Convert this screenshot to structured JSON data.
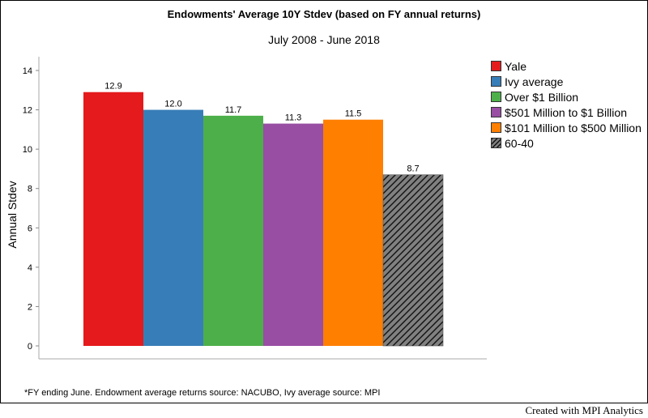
{
  "chart_data": {
    "type": "bar",
    "title": "Endowments' Average 10Y Stdev (based on FY annual returns)",
    "subtitle": "July 2008 - June 2018",
    "ylabel": "Annual Stdev",
    "xlabel": "",
    "ylim": [
      0,
      14
    ],
    "yticks": [
      0,
      2,
      4,
      6,
      8,
      10,
      12,
      14
    ],
    "categories": [
      "Yale",
      "Ivy average",
      "Over $1 Billion",
      "$501 Million to $1 Billion",
      "$101 Million to $500 Million",
      "60-40"
    ],
    "values": [
      12.9,
      12.0,
      11.7,
      11.3,
      11.5,
      8.7
    ],
    "value_labels": [
      "12.9",
      "12.0",
      "11.7",
      "11.3",
      "11.5",
      "8.7"
    ],
    "colors": [
      "#e41a1c",
      "#377eb8",
      "#4daf4a",
      "#984ea3",
      "#ff7f00",
      "#808080"
    ],
    "hatched": [
      false,
      false,
      false,
      false,
      false,
      true
    ],
    "legend_position": "right"
  },
  "footnote": "*FY ending June. Endowment average returns source: NACUBO, Ivy average source: MPI",
  "credit": "Created with MPI Analytics"
}
